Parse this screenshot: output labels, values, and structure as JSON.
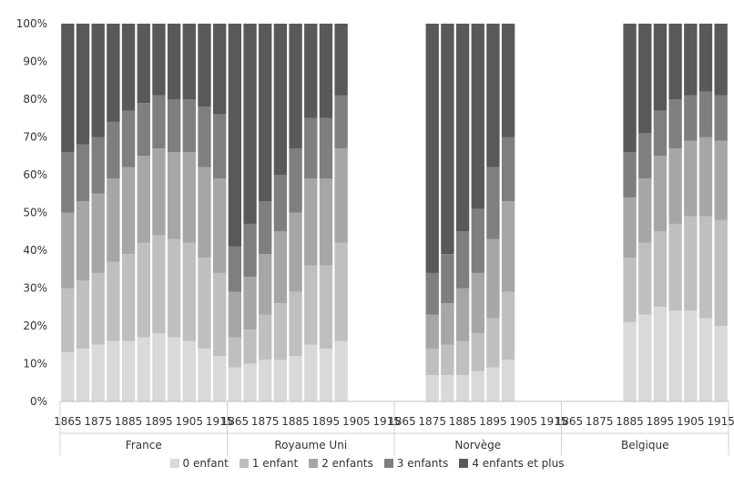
{
  "chart_data": {
    "type": "bar",
    "stacked": true,
    "percent": true,
    "years": [
      "1865",
      "1870",
      "1875",
      "1880",
      "1885",
      "1890",
      "1895",
      "1900",
      "1905",
      "1910",
      "1915"
    ],
    "x_tick_labels": [
      "1865",
      "1875",
      "1885",
      "1895",
      "1905",
      "1915"
    ],
    "y_ticks": [
      "0%",
      "10%",
      "20%",
      "30%",
      "40%",
      "50%",
      "60%",
      "70%",
      "80%",
      "90%",
      "100%"
    ],
    "ylim": [
      0,
      100
    ],
    "groups": [
      {
        "name": "France",
        "bars": [
          [
            13,
            17,
            20,
            16,
            34
          ],
          [
            14,
            18,
            21,
            15,
            32
          ],
          [
            15,
            19,
            21,
            15,
            30
          ],
          [
            16,
            21,
            22,
            15,
            26
          ],
          [
            16,
            23,
            23,
            15,
            23
          ],
          [
            17,
            25,
            23,
            14,
            21
          ],
          [
            18,
            26,
            23,
            14,
            19
          ],
          [
            17,
            26,
            23,
            14,
            20
          ],
          [
            16,
            26,
            24,
            14,
            20
          ],
          [
            14,
            24,
            24,
            16,
            22
          ],
          [
            12,
            22,
            25,
            17,
            24
          ]
        ]
      },
      {
        "name": "Royaume Uni",
        "bars": [
          [
            9,
            8,
            12,
            12,
            59
          ],
          [
            10,
            9,
            14,
            14,
            53
          ],
          [
            11,
            12,
            16,
            14,
            47
          ],
          [
            11,
            15,
            19,
            15,
            40
          ],
          [
            12,
            17,
            21,
            17,
            33
          ],
          [
            15,
            21,
            23,
            16,
            25
          ],
          [
            14,
            22,
            23,
            16,
            25
          ],
          [
            16,
            26,
            25,
            14,
            19
          ],
          null,
          null,
          null
        ]
      },
      {
        "name": "Norvège",
        "bars": [
          null,
          null,
          [
            7,
            7,
            9,
            11,
            66
          ],
          [
            7,
            8,
            11,
            13,
            61
          ],
          [
            7,
            9,
            14,
            15,
            55
          ],
          [
            8,
            10,
            16,
            17,
            49
          ],
          [
            9,
            13,
            21,
            19,
            38
          ],
          [
            11,
            18,
            24,
            17,
            30
          ],
          null,
          null,
          null
        ]
      },
      {
        "name": "Belgique",
        "bars": [
          null,
          null,
          null,
          null,
          [
            21,
            17,
            16,
            12,
            34
          ],
          [
            23,
            19,
            17,
            12,
            29
          ],
          [
            25,
            20,
            20,
            12,
            23
          ],
          [
            24,
            23,
            20,
            13,
            20
          ],
          [
            24,
            25,
            20,
            12,
            19
          ],
          [
            22,
            27,
            21,
            12,
            18
          ],
          [
            20,
            28,
            21,
            12,
            19
          ]
        ]
      }
    ],
    "series": [
      {
        "name": "0 enfant",
        "color": "#d9d9d9"
      },
      {
        "name": "1 enfant",
        "color": "#bfbfbf"
      },
      {
        "name": "2 enfants",
        "color": "#a6a6a6"
      },
      {
        "name": "3 enfants",
        "color": "#7f7f7f"
      },
      {
        "name": "4 enfants et plus",
        "color": "#595959"
      }
    ],
    "legend_position": "bottom",
    "gridlines": false
  }
}
